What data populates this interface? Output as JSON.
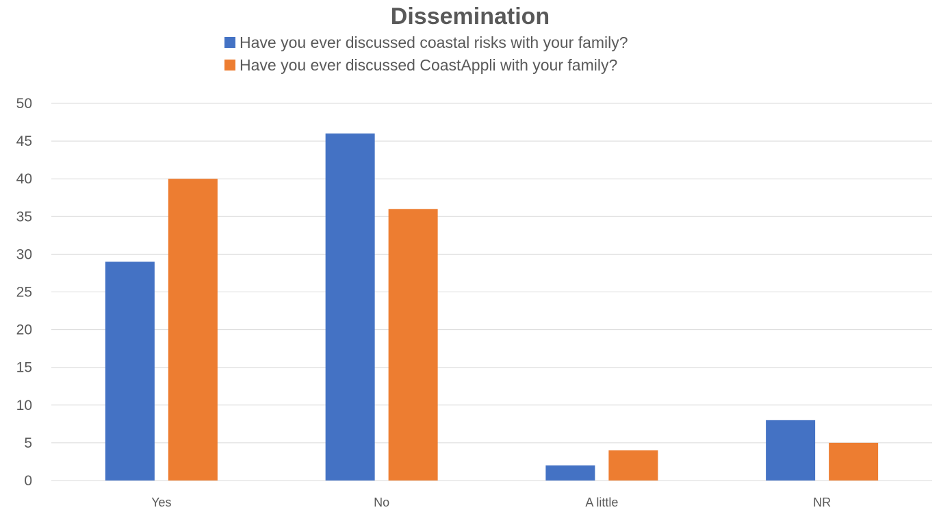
{
  "chart_data": {
    "type": "bar",
    "title": "Dissemination",
    "xlabel": "",
    "ylabel": "",
    "categories": [
      "Yes",
      "No",
      "A little",
      "NR"
    ],
    "series": [
      {
        "name": "Have you ever discussed coastal risks with your family?",
        "color": "#4472c4",
        "values": [
          29,
          46,
          2,
          8
        ]
      },
      {
        "name": "Have you ever discussed CoastAppli with your family?",
        "color": "#ed7d31",
        "values": [
          40,
          36,
          4,
          5
        ]
      }
    ],
    "ylim": [
      0,
      50
    ],
    "yticks": [
      0,
      5,
      10,
      15,
      20,
      25,
      30,
      35,
      40,
      45,
      50
    ],
    "grid": true,
    "legend_position": "top"
  }
}
